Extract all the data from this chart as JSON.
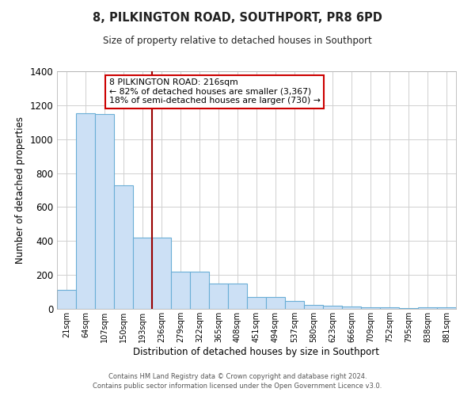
{
  "title": "8, PILKINGTON ROAD, SOUTHPORT, PR8 6PD",
  "subtitle": "Size of property relative to detached houses in Southport",
  "xlabel": "Distribution of detached houses by size in Southport",
  "ylabel": "Number of detached properties",
  "bar_labels": [
    "21sqm",
    "64sqm",
    "107sqm",
    "150sqm",
    "193sqm",
    "236sqm",
    "279sqm",
    "322sqm",
    "365sqm",
    "408sqm",
    "451sqm",
    "494sqm",
    "537sqm",
    "580sqm",
    "623sqm",
    "666sqm",
    "709sqm",
    "752sqm",
    "795sqm",
    "838sqm",
    "881sqm"
  ],
  "bar_values": [
    110,
    1155,
    1150,
    730,
    420,
    420,
    220,
    220,
    150,
    150,
    70,
    70,
    45,
    25,
    20,
    15,
    10,
    10,
    5,
    10,
    10
  ],
  "bar_color": "#cce0f5",
  "bar_edge_color": "#6aaed6",
  "vline_color": "#990000",
  "annotation_text": "8 PILKINGTON ROAD: 216sqm\n← 82% of detached houses are smaller (3,367)\n18% of semi-detached houses are larger (730) →",
  "annotation_box_color": "#ffffff",
  "annotation_box_edge": "#cc0000",
  "ylim": [
    0,
    1400
  ],
  "yticks": [
    0,
    200,
    400,
    600,
    800,
    1000,
    1200,
    1400
  ],
  "footer1": "Contains HM Land Registry data © Crown copyright and database right 2024.",
  "footer2": "Contains public sector information licensed under the Open Government Licence v3.0.",
  "bg_color": "#ffffff",
  "grid_color": "#d0d0d0"
}
